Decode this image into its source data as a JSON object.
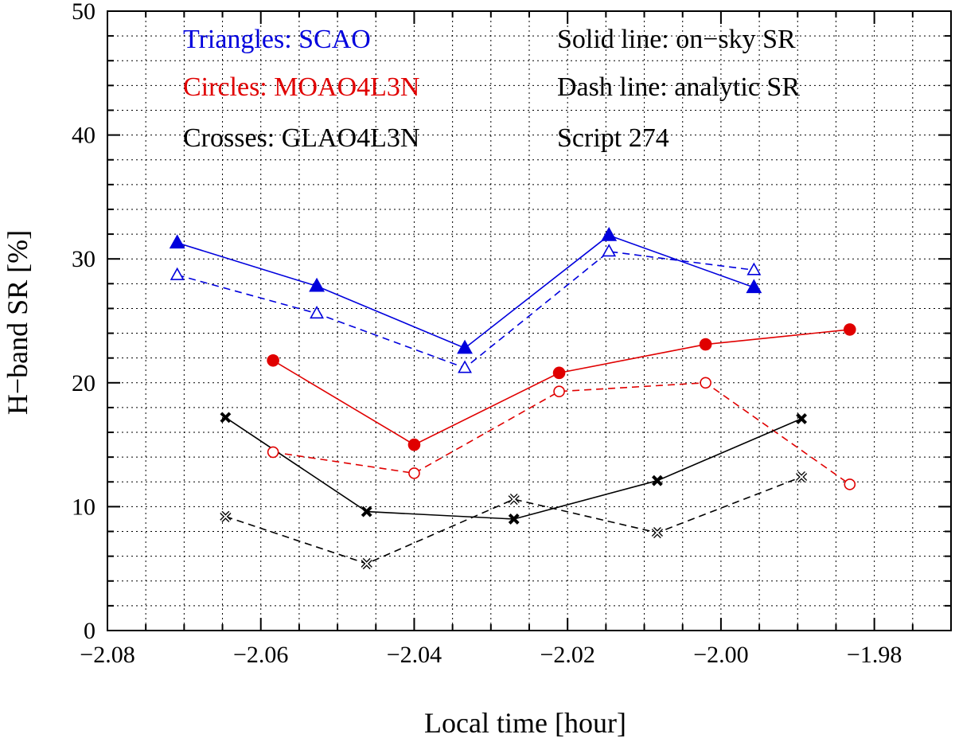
{
  "chart_data": {
    "type": "line",
    "xlabel": "Local time [hour]",
    "ylabel": "H−band SR [%]",
    "xlim": [
      -2.08,
      -1.97
    ],
    "ylim": [
      0,
      50
    ],
    "x_ticks": [
      -2.08,
      -2.06,
      -2.04,
      -2.02,
      -2.0,
      -1.98
    ],
    "x_tick_labels": [
      "−2.08",
      "−2.06",
      "−2.04",
      "−2.02",
      "−2.00",
      "−1.98"
    ],
    "y_ticks": [
      0,
      10,
      20,
      30,
      40,
      50
    ],
    "y_tick_labels": [
      "0",
      "10",
      "20",
      "30",
      "40",
      "50"
    ],
    "grid": true,
    "annotations": [
      {
        "text": "Triangles: SCAO",
        "color": "#0000dd"
      },
      {
        "text": "Circles: MOAO4L3N",
        "color": "#e00000"
      },
      {
        "text": "Crosses: GLAO4L3N",
        "color": "#000000"
      },
      {
        "text": "Solid line: on−sky SR",
        "color": "#000000"
      },
      {
        "text": "Dash  line: analytic SR",
        "color": "#000000"
      },
      {
        "text": "Script 274",
        "color": "#000000"
      }
    ],
    "series": [
      {
        "color": "#0000dd",
        "marker": "triangle",
        "filled": true,
        "dashed": false,
        "x": [
          -2.0709,
          -2.0527,
          -2.0334,
          -2.0146,
          -1.9957
        ],
        "y": [
          31.3,
          27.8,
          22.8,
          31.9,
          27.7
        ]
      },
      {
        "color": "#0000dd",
        "marker": "triangle",
        "filled": false,
        "dashed": true,
        "x": [
          -2.0709,
          -2.0527,
          -2.0334,
          -2.0146,
          -1.9957
        ],
        "y": [
          28.7,
          25.6,
          21.2,
          30.6,
          29.1
        ]
      },
      {
        "color": "#e00000",
        "marker": "circle",
        "filled": true,
        "dashed": false,
        "x": [
          -2.0584,
          -2.04,
          -2.0211,
          -2.002,
          -1.9832
        ],
        "y": [
          21.8,
          15.0,
          20.8,
          23.1,
          24.3
        ]
      },
      {
        "color": "#e00000",
        "marker": "circle",
        "filled": false,
        "dashed": true,
        "x": [
          -2.0584,
          -2.04,
          -2.0211,
          -2.002,
          -1.9832
        ],
        "y": [
          14.4,
          12.7,
          19.3,
          20.0,
          11.8
        ]
      },
      {
        "color": "#000000",
        "marker": "cross",
        "filled": true,
        "dashed": false,
        "x": [
          -2.0646,
          -2.0462,
          -2.027,
          -2.0083,
          -1.9895
        ],
        "y": [
          17.2,
          9.6,
          9.0,
          12.1,
          17.1
        ]
      },
      {
        "color": "#000000",
        "marker": "cross",
        "filled": false,
        "dashed": true,
        "x": [
          -2.0646,
          -2.0462,
          -2.027,
          -2.0083,
          -1.9895
        ],
        "y": [
          9.2,
          5.4,
          10.6,
          7.9,
          12.4
        ]
      }
    ]
  }
}
